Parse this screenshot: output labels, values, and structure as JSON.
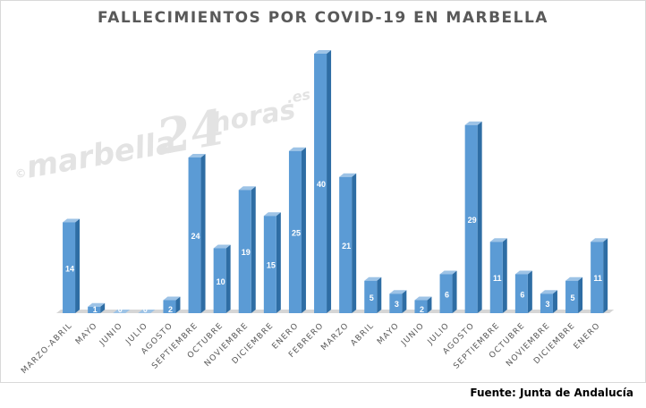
{
  "chart_data": {
    "type": "bar",
    "title": "FALLECIMIENTOS POR COVID-19 EN MARBELLA",
    "xlabel": "",
    "ylabel": "",
    "ylim": [
      0,
      40
    ],
    "grid": false,
    "legend": "none",
    "style": "3d-columns",
    "bar_color": "#5b9bd5",
    "bar_side_color": "#2e6da4",
    "bar_top_color": "#9dc3e6",
    "floor_color": "#d6d6d6",
    "value_label_color": "#ffffff",
    "categories": [
      "MARZO-ABRIL",
      "MAYO",
      "JUNIO",
      "JULIO",
      "AGOSTO",
      "SEPTIEMBRE",
      "OCTUBRE",
      "NOVIEMBRE",
      "DICIEMBRE",
      "ENERO",
      "FEBRERO",
      "MARZO",
      "ABRIL",
      "MAYO",
      "JUNIO",
      "JULIO",
      "AGOSTO",
      "SEPTIEMBRE",
      "OCTUBRE",
      "NOVIEMBRE",
      "DICIEMBRE",
      "ENERO"
    ],
    "values": [
      14,
      1,
      0,
      0,
      2,
      24,
      10,
      19,
      15,
      25,
      40,
      21,
      5,
      3,
      2,
      6,
      29,
      11,
      6,
      3,
      5,
      11
    ]
  },
  "watermark": {
    "copyright": "©",
    "brand": "marbella",
    "number": "24",
    "suffix": "horas",
    "tld": ".es"
  },
  "source": "Fuente: Junta de Andalucía"
}
